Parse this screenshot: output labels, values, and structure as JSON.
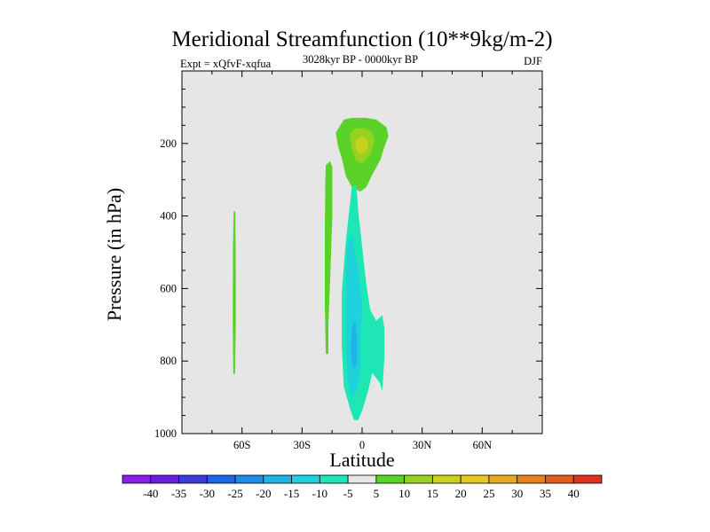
{
  "chart_data": {
    "type": "contour",
    "title": "Meridional Streamfunction (10**9kg/m-2)",
    "subtitle_left": "Expt = xQfvF-xqfua",
    "subtitle_center": "3028kyr BP - 0000kyr BP",
    "subtitle_right": "DJF",
    "xlabel": "Latitude",
    "ylabel": "Pressure (in hPa)",
    "xlim": [
      -90,
      90
    ],
    "ylim": [
      1000,
      0
    ],
    "xticks": [
      {
        "value": -60,
        "label": "60S"
      },
      {
        "value": -30,
        "label": "30S"
      },
      {
        "value": 0,
        "label": "0"
      },
      {
        "value": 30,
        "label": "30N"
      },
      {
        "value": 60,
        "label": "60N"
      }
    ],
    "yticks": [
      {
        "value": 200,
        "label": "200"
      },
      {
        "value": 400,
        "label": "400"
      },
      {
        "value": 600,
        "label": "600"
      },
      {
        "value": 800,
        "label": "800"
      },
      {
        "value": 1000,
        "label": "1000"
      }
    ],
    "plot_background": "#e6e6e6",
    "colorbar": {
      "levels": [
        "-40",
        "-35",
        "-30",
        "-25",
        "-20",
        "-15",
        "-10",
        "-5",
        "5",
        "10",
        "15",
        "20",
        "25",
        "30",
        "35",
        "40"
      ],
      "colors": [
        "#8c1ee6",
        "#6a1ee0",
        "#3c3cdc",
        "#1e64e6",
        "#1e8ce6",
        "#1eb4e6",
        "#1ed2dc",
        "#1ee6b4",
        "#e6e6e6",
        "#5ad228",
        "#96d21e",
        "#c8d21e",
        "#e6c81e",
        "#e6aa1e",
        "#e6821e",
        "#e65a1e",
        "#dc321e"
      ]
    },
    "regions": [
      {
        "name": "positive-upper-cell",
        "level": 5,
        "color": "#5ad228",
        "points": [
          [
            -13,
            170
          ],
          [
            -9,
            135
          ],
          [
            -5,
            130
          ],
          [
            2,
            130
          ],
          [
            7,
            135
          ],
          [
            12,
            155
          ],
          [
            13,
            180
          ],
          [
            11,
            210
          ],
          [
            9,
            245
          ],
          [
            5,
            285
          ],
          [
            2,
            320
          ],
          [
            -1,
            332
          ],
          [
            -5,
            320
          ],
          [
            -8,
            290
          ],
          [
            -10,
            240
          ],
          [
            -12,
            205
          ]
        ]
      },
      {
        "name": "positive-upper-core",
        "level": 10,
        "color": "#96d21e",
        "points": [
          [
            -6,
            175
          ],
          [
            -4,
            160
          ],
          [
            1,
            158
          ],
          [
            5,
            170
          ],
          [
            6,
            195
          ],
          [
            4,
            230
          ],
          [
            0,
            255
          ],
          [
            -3,
            248
          ],
          [
            -5,
            215
          ]
        ]
      },
      {
        "name": "positive-upper-peak",
        "level": 15,
        "color": "#c8d21e",
        "points": [
          [
            -3,
            190
          ],
          [
            0,
            180
          ],
          [
            3,
            195
          ],
          [
            2,
            222
          ],
          [
            -1,
            230
          ],
          [
            -3,
            215
          ]
        ]
      },
      {
        "name": "positive-mid-band",
        "level": 5,
        "color": "#5ad228",
        "points": [
          [
            -18,
            260
          ],
          [
            -16,
            250
          ],
          [
            -15,
            265
          ],
          [
            -15,
            400
          ],
          [
            -16,
            560
          ],
          [
            -17,
            700
          ],
          [
            -17,
            780
          ],
          [
            -18,
            780
          ],
          [
            -18.5,
            650
          ],
          [
            -18.5,
            450
          ],
          [
            -18.3,
            320
          ]
        ]
      },
      {
        "name": "positive-south-strip",
        "level": 5,
        "color": "#5ad228",
        "points": [
          [
            -64,
            388
          ],
          [
            -63.5,
            388
          ],
          [
            -63.2,
            550
          ],
          [
            -63.2,
            700
          ],
          [
            -63.6,
            835
          ],
          [
            -64.2,
            835
          ],
          [
            -64.5,
            700
          ],
          [
            -64.4,
            500
          ]
        ]
      },
      {
        "name": "negative-tropical-cell",
        "level": -5,
        "color": "#1ee6b4",
        "points": [
          [
            -5,
            320
          ],
          [
            -3,
            315
          ],
          [
            -2,
            390
          ],
          [
            0,
            490
          ],
          [
            2,
            590
          ],
          [
            4,
            660
          ],
          [
            7,
            690
          ],
          [
            10,
            675
          ],
          [
            11,
            710
          ],
          [
            11,
            790
          ],
          [
            10,
            880
          ],
          [
            9,
            860
          ],
          [
            5,
            830
          ],
          [
            3,
            880
          ],
          [
            0,
            935
          ],
          [
            -2,
            962
          ],
          [
            -4,
            962
          ],
          [
            -6,
            930
          ],
          [
            -9,
            870
          ],
          [
            -10,
            760
          ],
          [
            -10,
            610
          ],
          [
            -8,
            470
          ],
          [
            -6,
            370
          ]
        ]
      },
      {
        "name": "negative-tropical-core",
        "level": -10,
        "color": "#1ed2dc",
        "points": [
          [
            -7,
            470
          ],
          [
            -5,
            455
          ],
          [
            -3,
            520
          ],
          [
            0,
            640
          ],
          [
            -1,
            730
          ],
          [
            -1,
            820
          ],
          [
            -3,
            880
          ],
          [
            -5,
            900
          ],
          [
            -7,
            860
          ],
          [
            -8,
            770
          ],
          [
            -8,
            650
          ],
          [
            -8,
            560
          ]
        ]
      },
      {
        "name": "negative-tropical-peak",
        "level": -15,
        "color": "#1eb4e6",
        "points": [
          [
            -5,
            710
          ],
          [
            -3.5,
            690
          ],
          [
            -2.5,
            760
          ],
          [
            -3,
            815
          ],
          [
            -4.5,
            820
          ],
          [
            -5.5,
            780
          ]
        ]
      }
    ]
  }
}
